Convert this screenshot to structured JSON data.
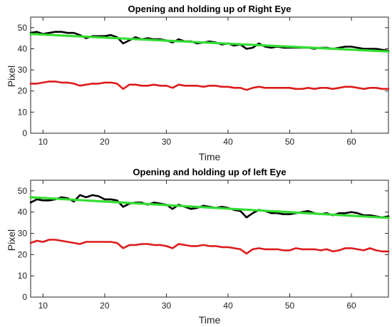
{
  "chart_data": [
    {
      "type": "line",
      "title": "Opening and holding up of Right Eye",
      "xlabel": "Time",
      "ylabel": "Pixel",
      "xlim": [
        8,
        66
      ],
      "ylim": [
        0,
        55
      ],
      "xticks": [
        10,
        20,
        30,
        40,
        50,
        60
      ],
      "yticks": [
        0,
        10,
        20,
        30,
        40,
        50
      ],
      "xtick_labels": [
        "10",
        "20",
        "30",
        "40",
        "50",
        "60"
      ],
      "ytick_labels": [
        "0",
        "10",
        "20",
        "30",
        "40",
        "50"
      ],
      "grid": false,
      "series": [
        {
          "color": "#000000",
          "x": [
            8,
            9,
            10,
            11,
            12,
            13,
            14,
            15,
            16,
            17,
            18,
            19,
            20,
            21,
            22,
            23,
            24,
            25,
            26,
            27,
            28,
            29,
            30,
            31,
            32,
            33,
            34,
            35,
            36,
            37,
            38,
            39,
            40,
            41,
            42,
            43,
            44,
            45,
            46,
            47,
            48,
            49,
            50,
            51,
            52,
            53,
            54,
            55,
            56,
            57,
            58,
            59,
            60,
            61,
            62,
            63,
            64,
            65,
            66
          ],
          "y": [
            47.5,
            48,
            47,
            47.5,
            48,
            48,
            47.5,
            47.5,
            46.5,
            45,
            46,
            46,
            46,
            46.5,
            45.5,
            42.5,
            44,
            45.5,
            44.5,
            45,
            44.5,
            44.5,
            44,
            43,
            44.5,
            43.5,
            43.5,
            42.5,
            43,
            43.5,
            43,
            42,
            42.5,
            41.5,
            42,
            40,
            40.5,
            42.5,
            41,
            40.5,
            41,
            40.5,
            40.5,
            40.5,
            40.5,
            40.5,
            40,
            40.5,
            40.5,
            40,
            40.5,
            41,
            41,
            40.5,
            40,
            40,
            40,
            39.5,
            39
          ]
        },
        {
          "color": "#dd1a1a",
          "x": [
            8,
            9,
            10,
            11,
            12,
            13,
            14,
            15,
            16,
            17,
            18,
            19,
            20,
            21,
            22,
            23,
            24,
            25,
            26,
            27,
            28,
            29,
            30,
            31,
            32,
            33,
            34,
            35,
            36,
            37,
            38,
            39,
            40,
            41,
            42,
            43,
            44,
            45,
            46,
            47,
            48,
            49,
            50,
            51,
            52,
            53,
            54,
            55,
            56,
            57,
            58,
            59,
            60,
            61,
            62,
            63,
            64,
            65,
            66
          ],
          "y": [
            23.5,
            23.5,
            24,
            24.5,
            24.5,
            24,
            24,
            23.5,
            22.5,
            23,
            23.5,
            23.5,
            24,
            24,
            23.5,
            21,
            23,
            23,
            22.5,
            22.5,
            23,
            22.5,
            22.5,
            21.5,
            23,
            22.5,
            22.5,
            22.5,
            22,
            22.5,
            22.5,
            22,
            22,
            21.5,
            21.5,
            20.5,
            21.5,
            22,
            21.5,
            21.5,
            21.5,
            21.5,
            21.5,
            21,
            21,
            21.5,
            21,
            21.5,
            21.5,
            21,
            21.5,
            22,
            22,
            21.5,
            21,
            21.5,
            21.5,
            21,
            21
          ]
        },
        {
          "color": "#33dd33",
          "x": [
            8,
            66
          ],
          "y": [
            47,
            38.7
          ]
        }
      ]
    },
    {
      "type": "line",
      "title": "Opening and holding up of left Eye",
      "xlabel": "Time",
      "ylabel": "Pixel",
      "xlim": [
        8,
        66
      ],
      "ylim": [
        0,
        55
      ],
      "xticks": [
        10,
        20,
        30,
        40,
        50,
        60
      ],
      "yticks": [
        0,
        10,
        20,
        30,
        40,
        50
      ],
      "xtick_labels": [
        "10",
        "20",
        "30",
        "40",
        "50",
        "60"
      ],
      "ytick_labels": [
        "0",
        "10",
        "20",
        "30",
        "40",
        "50"
      ],
      "grid": false,
      "series": [
        {
          "color": "#000000",
          "x": [
            8,
            9,
            10,
            11,
            12,
            13,
            14,
            15,
            16,
            17,
            18,
            19,
            20,
            21,
            22,
            23,
            24,
            25,
            26,
            27,
            28,
            29,
            30,
            31,
            32,
            33,
            34,
            35,
            36,
            37,
            38,
            39,
            40,
            41,
            42,
            43,
            44,
            45,
            46,
            47,
            48,
            49,
            50,
            51,
            52,
            53,
            54,
            55,
            56,
            57,
            58,
            59,
            60,
            61,
            62,
            63,
            64,
            65,
            66
          ],
          "y": [
            44.5,
            46,
            45.5,
            45.5,
            46,
            47,
            46.5,
            45,
            48,
            47,
            48,
            47.5,
            46,
            46,
            45.5,
            42.5,
            44,
            44.5,
            44.5,
            43.5,
            44.5,
            44,
            43.5,
            41.5,
            43.5,
            42.5,
            41.5,
            42,
            43,
            42.5,
            42,
            42.5,
            42,
            41,
            40.5,
            37.5,
            39.5,
            41,
            40.5,
            39.5,
            39.5,
            39,
            39,
            39.5,
            40,
            40.5,
            39.5,
            39,
            39.5,
            38.5,
            39.5,
            39.5,
            40,
            39.5,
            38.5,
            38.5,
            38,
            37.5,
            38
          ]
        },
        {
          "color": "#dd1a1a",
          "x": [
            8,
            9,
            10,
            11,
            12,
            13,
            14,
            15,
            16,
            17,
            18,
            19,
            20,
            21,
            22,
            23,
            24,
            25,
            26,
            27,
            28,
            29,
            30,
            31,
            32,
            33,
            34,
            35,
            36,
            37,
            38,
            39,
            40,
            41,
            42,
            43,
            44,
            45,
            46,
            47,
            48,
            49,
            50,
            51,
            52,
            53,
            54,
            55,
            56,
            57,
            58,
            59,
            60,
            61,
            62,
            63,
            64,
            65,
            66
          ],
          "y": [
            25.5,
            26.5,
            26,
            27,
            27,
            26.5,
            26,
            25.5,
            25,
            26,
            26,
            26,
            26,
            26,
            25.5,
            23,
            24.5,
            24.5,
            25,
            25,
            24.5,
            24.5,
            24,
            23,
            25,
            24.5,
            24,
            24,
            24.5,
            24,
            24,
            23.5,
            23.5,
            23,
            22.5,
            20.5,
            22.5,
            23,
            22.5,
            22.5,
            22.5,
            22,
            22,
            23,
            22.5,
            22.5,
            22.5,
            22,
            22.5,
            21.5,
            22,
            23,
            23,
            22.5,
            22,
            23,
            22,
            21.5,
            21.5
          ]
        },
        {
          "color": "#33dd33",
          "x": [
            8,
            66
          ],
          "y": [
            47,
            37.3
          ]
        }
      ]
    }
  ]
}
